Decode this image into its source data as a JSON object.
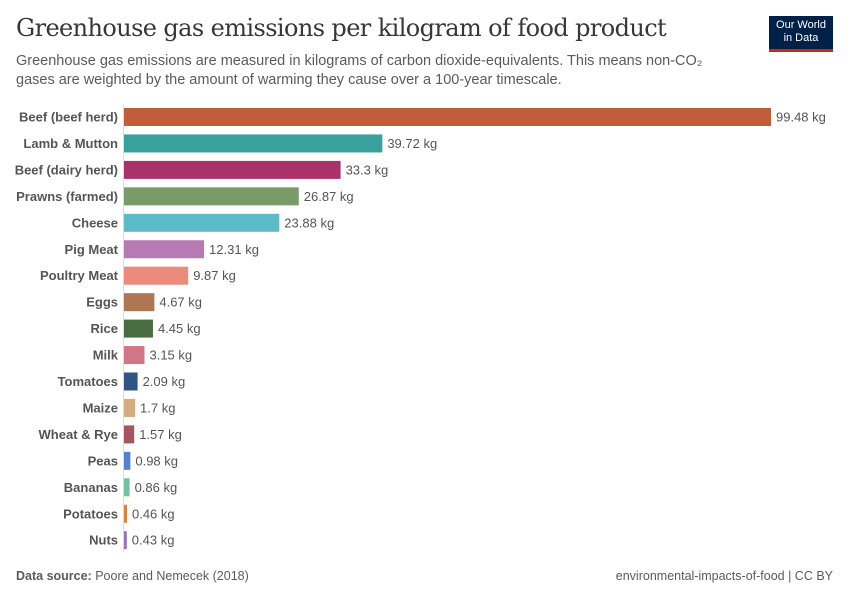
{
  "title": "Greenhouse gas emissions per kilogram of food product",
  "subtitle": "Greenhouse gas emissions are measured in kilograms of carbon dioxide-equivalents. This means non-CO₂ gases are weighted by the amount of warming they cause over a 100-year timescale.",
  "logo": {
    "line1": "Our World",
    "line2": "in Data"
  },
  "footer": {
    "source_label": "Data source:",
    "source": "Poore and Nemecek (2018)",
    "right": "environmental-impacts-of-food | CC BY"
  },
  "chart_data": {
    "type": "bar",
    "orientation": "horizontal",
    "unit": "kg",
    "categories": [
      "Beef (beef herd)",
      "Lamb & Mutton",
      "Beef (dairy herd)",
      "Prawns (farmed)",
      "Cheese",
      "Pig Meat",
      "Poultry Meat",
      "Eggs",
      "Rice",
      "Milk",
      "Tomatoes",
      "Maize",
      "Wheat & Rye",
      "Peas",
      "Bananas",
      "Potatoes",
      "Nuts"
    ],
    "values": [
      99.48,
      39.72,
      33.3,
      26.87,
      23.88,
      12.31,
      9.87,
      4.67,
      4.45,
      3.15,
      2.09,
      1.7,
      1.57,
      0.98,
      0.86,
      0.46,
      0.43
    ],
    "labels": [
      "99.48 kg",
      "39.72 kg",
      "33.3 kg",
      "26.87 kg",
      "23.88 kg",
      "12.31 kg",
      "9.87 kg",
      "4.67 kg",
      "4.45 kg",
      "3.15 kg",
      "2.09 kg",
      "1.7 kg",
      "1.57 kg",
      "0.98 kg",
      "0.86 kg",
      "0.46 kg",
      "0.43 kg"
    ],
    "colors": [
      "#c15d39",
      "#38a19b",
      "#a93368",
      "#789b67",
      "#5bbcc8",
      "#b77bb3",
      "#ec8a7b",
      "#b07552",
      "#476d40",
      "#d27687",
      "#2f5583",
      "#d3ab7c",
      "#a3565f",
      "#5583d3",
      "#72c3a2",
      "#e27f39",
      "#9b6fc2"
    ],
    "xlim": [
      0,
      99.48
    ],
    "grid": false
  }
}
